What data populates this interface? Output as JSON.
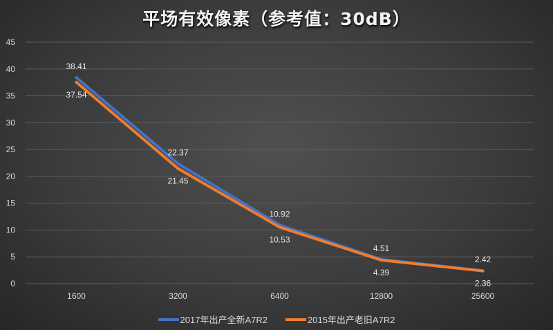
{
  "chart_data": {
    "type": "line",
    "title": "平场有效像素（参考值：30dB）",
    "categories": [
      "1600",
      "3200",
      "6400",
      "12800",
      "25600"
    ],
    "ylim": [
      0,
      45
    ],
    "yticks": [
      "0",
      "5",
      "10",
      "15",
      "20",
      "25",
      "30",
      "35",
      "40",
      "45"
    ],
    "grid": true,
    "legend": "bottom",
    "series": [
      {
        "name": "2017年出产全新A7R2",
        "color": "#4472c4",
        "values": [
          38.41,
          22.37,
          10.92,
          4.51,
          2.42
        ],
        "labels": [
          "38.41",
          "22.37",
          "10.92",
          "4.51",
          "2.42"
        ]
      },
      {
        "name": "2015年出产老旧A7R2",
        "color": "#ed7d31",
        "values": [
          37.54,
          21.45,
          10.53,
          4.39,
          2.36
        ],
        "labels": [
          "37.54",
          "21.45",
          "10.53",
          "4.39",
          "2.36"
        ]
      }
    ]
  }
}
